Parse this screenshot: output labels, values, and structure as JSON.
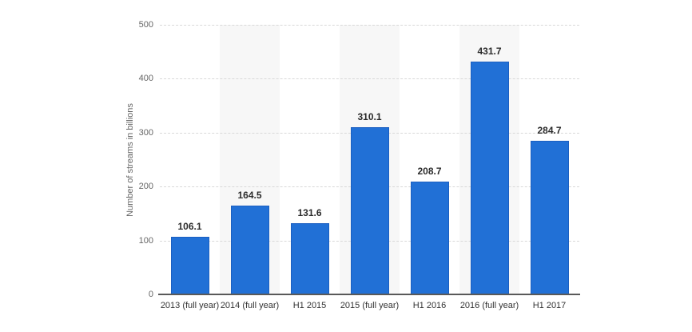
{
  "chart_data": {
    "type": "bar",
    "title": "",
    "xlabel": "",
    "ylabel": "Number of streams in billions",
    "categories": [
      "2013 (full year)",
      "2014 (full year)",
      "H1 2015",
      "2015 (full year)",
      "H1 2016",
      "2016 (full year)",
      "H1 2017"
    ],
    "values": [
      106.1,
      164.5,
      131.6,
      310.1,
      208.7,
      431.7,
      284.7
    ],
    "value_labels": [
      "106.1",
      "164.5",
      "131.6",
      "310.1",
      "208.7",
      "431.7",
      "284.7"
    ],
    "ylim": [
      0,
      500
    ],
    "yticks": [
      0,
      100,
      200,
      300,
      400,
      500
    ],
    "grid": "horizontal-dashed",
    "legend": "none",
    "band_pattern": "stripe-behind-even-categories",
    "colors": {
      "bar_fill": "#2170d6",
      "bar_border": "#1b5fc1",
      "band_stripe": "#f7f7f7",
      "gridline": "#d9d9d9",
      "axis_line": "#595959",
      "tick_text": "#666666",
      "value_text": "#2b2b2b",
      "category_text": "#333333",
      "background": "#ffffff"
    }
  }
}
